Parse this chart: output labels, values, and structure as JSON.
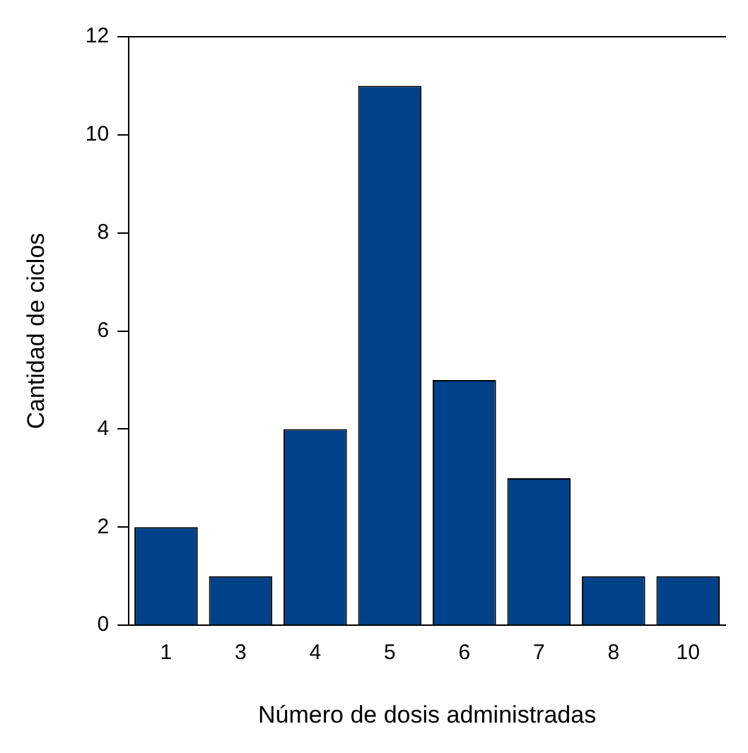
{
  "chart_data": {
    "type": "bar",
    "xlabel": "Número de dosis administradas",
    "ylabel": "Cantidad de ciclos",
    "categories": [
      "1",
      "3",
      "4",
      "5",
      "6",
      "7",
      "8",
      "10"
    ],
    "values": [
      2,
      1,
      4,
      11,
      5,
      3,
      1,
      1
    ],
    "color": "#00418a",
    "ylim": [
      0,
      12
    ],
    "yticks": [
      0,
      2,
      4,
      6,
      8,
      10,
      12
    ],
    "grid": false,
    "legend": false
  }
}
